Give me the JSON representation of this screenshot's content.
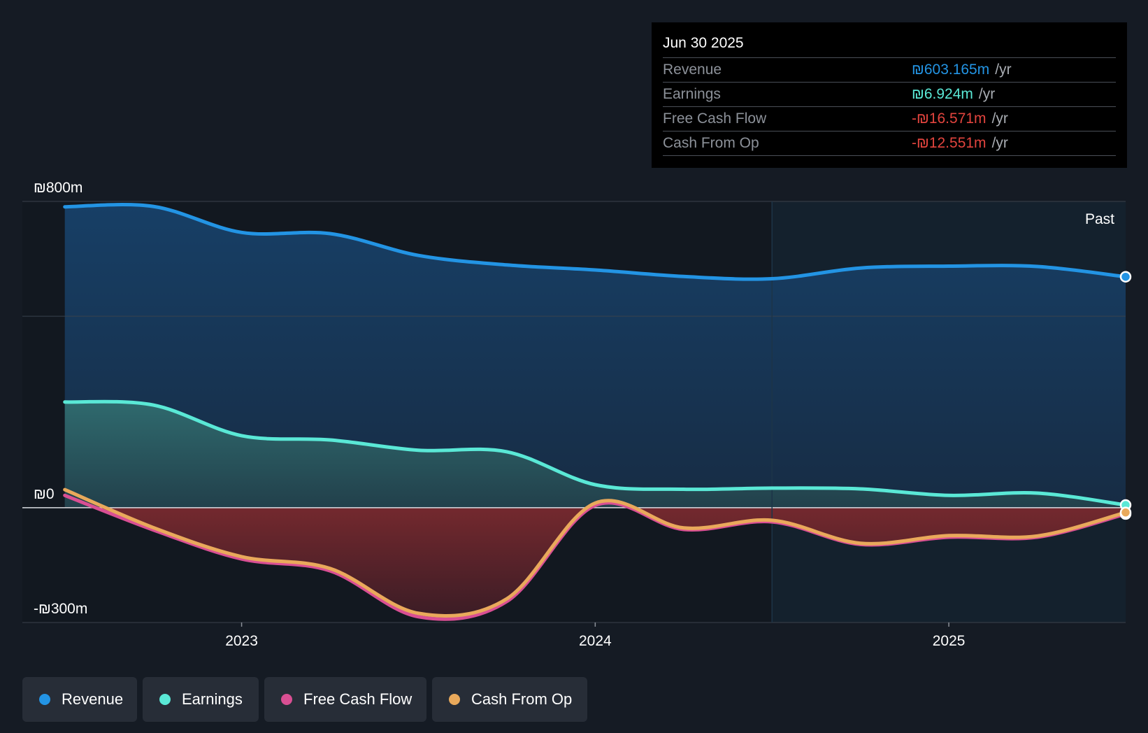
{
  "chart_data": {
    "type": "area",
    "title": "",
    "currency_symbol": "₪",
    "x_axis": {
      "ticks": [
        {
          "value": 2023.0,
          "label": "2023"
        },
        {
          "value": 2024.0,
          "label": "2024"
        },
        {
          "value": 2025.0,
          "label": "2025"
        }
      ],
      "range": [
        2022.38,
        2025.5
      ]
    },
    "y_axis": {
      "range": [
        -300,
        800
      ],
      "labels": [
        {
          "value": 800,
          "label": "₪800m"
        },
        {
          "value": 0,
          "label": "₪0"
        },
        {
          "value": -300,
          "label": "-₪300m"
        }
      ],
      "gridlines": [
        800,
        500,
        0,
        -300
      ]
    },
    "past_label": "Past",
    "past_region_start": 2024.5,
    "series": [
      {
        "name": "Revenue",
        "color": "#2394e4",
        "x": [
          2022.5,
          2022.75,
          2023.0,
          2023.25,
          2023.5,
          2023.75,
          2024.0,
          2024.25,
          2024.5,
          2024.75,
          2025.0,
          2025.25,
          2025.5
        ],
        "values": [
          786,
          787,
          719,
          716,
          659,
          634,
          621,
          604,
          598,
          626,
          631,
          630,
          603.165
        ]
      },
      {
        "name": "Earnings",
        "color": "#5ae8d6",
        "x": [
          2022.5,
          2022.75,
          2023.0,
          2023.25,
          2023.5,
          2023.75,
          2024.0,
          2024.25,
          2024.5,
          2024.75,
          2025.0,
          2025.25,
          2025.5
        ],
        "values": [
          276,
          268,
          188,
          177,
          150,
          146,
          60,
          48,
          51,
          49,
          32,
          38,
          6.924
        ]
      },
      {
        "name": "Free Cash Flow",
        "color": "#d94f93",
        "x": [
          2022.5,
          2022.75,
          2023.0,
          2023.25,
          2023.5,
          2023.75,
          2024.0,
          2024.25,
          2024.5,
          2024.75,
          2025.0,
          2025.25,
          2025.5
        ],
        "values": [
          32,
          -58,
          -134,
          -165,
          -285,
          -245,
          6,
          -57,
          -37,
          -96,
          -77,
          -77,
          -16.571
        ]
      },
      {
        "name": "Cash From Op",
        "color": "#e9a95b",
        "x": [
          2022.5,
          2022.75,
          2023.0,
          2023.25,
          2023.5,
          2023.75,
          2024.0,
          2024.25,
          2024.5,
          2024.75,
          2025.0,
          2025.25,
          2025.5
        ],
        "values": [
          47,
          -52,
          -128,
          -159,
          -276,
          -238,
          12,
          -53,
          -33,
          -93,
          -73,
          -74,
          -12.551
        ]
      }
    ]
  },
  "tooltip": {
    "date": "Jun 30 2025",
    "rows": [
      {
        "label": "Revenue",
        "value": "₪603.165m",
        "unit": "/yr",
        "color": "#2394e4"
      },
      {
        "label": "Earnings",
        "value": "₪6.924m",
        "unit": "/yr",
        "color": "#5ae8d6"
      },
      {
        "label": "Free Cash Flow",
        "value": "-₪16.571m",
        "unit": "/yr",
        "color": "#e2443e"
      },
      {
        "label": "Cash From Op",
        "value": "-₪12.551m",
        "unit": "/yr",
        "color": "#e2443e"
      }
    ]
  },
  "legend": [
    {
      "label": "Revenue",
      "color": "#2394e4"
    },
    {
      "label": "Earnings",
      "color": "#5ae8d6"
    },
    {
      "label": "Free Cash Flow",
      "color": "#d94f93"
    },
    {
      "label": "Cash From Op",
      "color": "#e9a95b"
    }
  ]
}
